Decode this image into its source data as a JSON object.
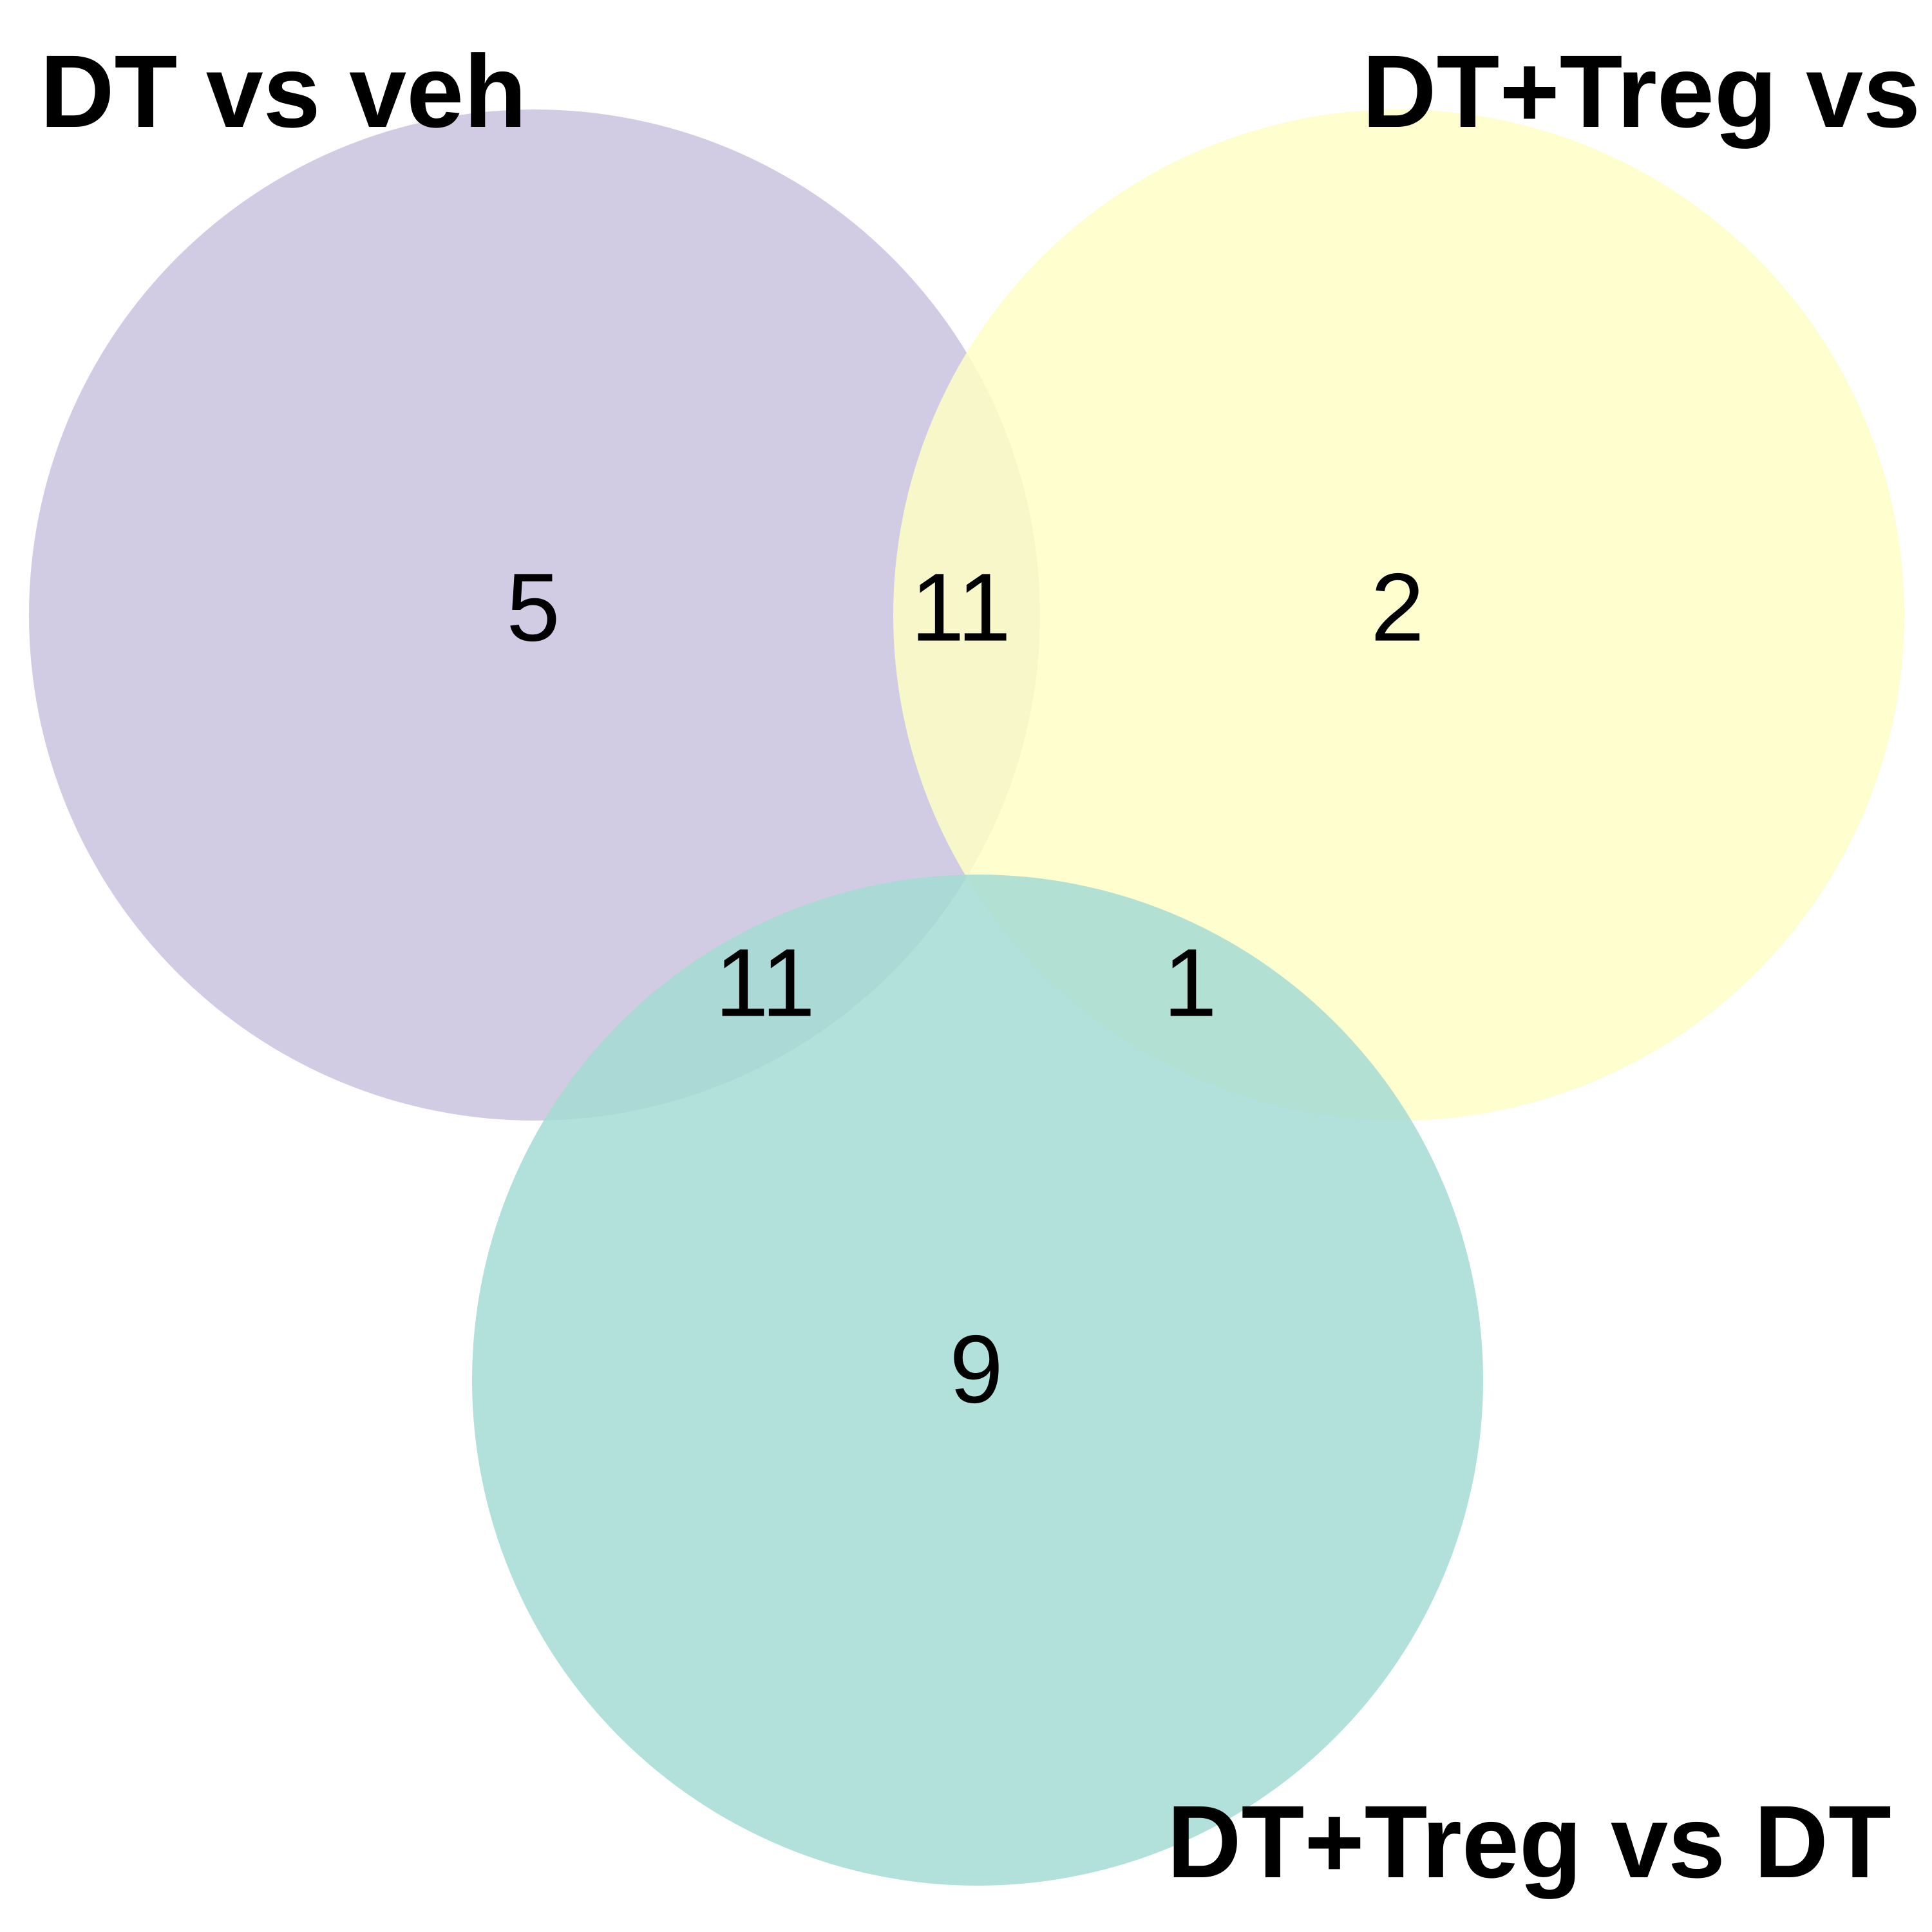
{
  "sets": [
    {
      "id": "a",
      "label": "DT vs veh",
      "color": "#c9c3df"
    },
    {
      "id": "b",
      "label": "DT+Treg vs veh",
      "color": "#fefec6"
    },
    {
      "id": "c",
      "label": "DT+Treg vs DT",
      "color": "#a4dbd3"
    }
  ],
  "regions": {
    "a_only": "5",
    "b_only": "2",
    "c_only": "9",
    "ab": "11",
    "ac": "11",
    "bc": "1"
  }
}
